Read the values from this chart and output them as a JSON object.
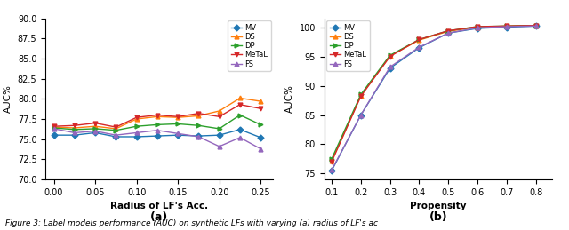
{
  "plot_a": {
    "xlabel": "Radius of LF's Acc.",
    "ylabel": "AUC%",
    "ylim": [
      70.0,
      90.0
    ],
    "xlim": [
      -0.01,
      0.265
    ],
    "yticks": [
      70.0,
      72.5,
      75.0,
      77.5,
      80.0,
      82.5,
      85.0,
      87.5,
      90.0
    ],
    "xticks": [
      0.0,
      0.05,
      0.1,
      0.15,
      0.2,
      0.25
    ],
    "series": {
      "MV": {
        "x": [
          0.0,
          0.025,
          0.05,
          0.075,
          0.1,
          0.125,
          0.15,
          0.175,
          0.2,
          0.225,
          0.25
        ],
        "y": [
          75.5,
          75.5,
          75.8,
          75.3,
          75.3,
          75.4,
          75.5,
          75.4,
          75.5,
          76.2,
          75.2
        ],
        "color": "#1f77b4",
        "marker": "D",
        "markersize": 3.5
      },
      "DS": {
        "x": [
          0.0,
          0.025,
          0.05,
          0.075,
          0.1,
          0.125,
          0.15,
          0.175,
          0.2,
          0.225,
          0.25
        ],
        "y": [
          76.5,
          76.4,
          76.6,
          76.3,
          77.5,
          77.8,
          77.7,
          77.9,
          78.5,
          80.1,
          79.7
        ],
        "color": "#ff7f0e",
        "marker": "^",
        "markersize": 3.5
      },
      "DP": {
        "x": [
          0.0,
          0.025,
          0.05,
          0.075,
          0.1,
          0.125,
          0.15,
          0.175,
          0.2,
          0.225,
          0.25
        ],
        "y": [
          76.4,
          76.2,
          76.3,
          76.1,
          76.6,
          76.8,
          76.9,
          76.7,
          76.3,
          78.0,
          76.8
        ],
        "color": "#2ca02c",
        "marker": ">",
        "markersize": 3.5
      },
      "MeTaL": {
        "x": [
          0.0,
          0.025,
          0.05,
          0.075,
          0.1,
          0.125,
          0.15,
          0.175,
          0.2,
          0.225,
          0.25
        ],
        "y": [
          76.6,
          76.7,
          77.0,
          76.5,
          77.7,
          78.0,
          77.8,
          78.2,
          77.8,
          79.3,
          78.8
        ],
        "color": "#d62728",
        "marker": "v",
        "markersize": 3.5
      },
      "FS": {
        "x": [
          0.0,
          0.025,
          0.05,
          0.075,
          0.1,
          0.125,
          0.15,
          0.175,
          0.2,
          0.225,
          0.25
        ],
        "y": [
          76.3,
          75.8,
          76.0,
          75.5,
          75.8,
          76.1,
          75.7,
          75.3,
          74.1,
          75.2,
          73.8
        ],
        "color": "#9467bd",
        "marker": "^",
        "markersize": 3.5
      }
    }
  },
  "plot_b": {
    "xlabel": "Propensity",
    "ylabel": "AUC%",
    "ylim": [
      74.0,
      101.5
    ],
    "xlim": [
      0.075,
      0.855
    ],
    "yticks": [
      75,
      80,
      85,
      90,
      95,
      100
    ],
    "xticks": [
      0.1,
      0.2,
      0.3,
      0.4,
      0.5,
      0.6,
      0.7,
      0.8
    ],
    "series": {
      "MV": {
        "x": [
          0.1,
          0.2,
          0.3,
          0.4,
          0.5,
          0.6,
          0.7,
          0.8
        ],
        "y": [
          75.5,
          85.0,
          93.0,
          96.5,
          99.0,
          99.8,
          100.0,
          100.2
        ],
        "color": "#1f77b4",
        "marker": "D",
        "markersize": 3.5
      },
      "DS": {
        "x": [
          0.1,
          0.2,
          0.3,
          0.4,
          0.5,
          0.6,
          0.7,
          0.8
        ],
        "y": [
          77.2,
          88.3,
          95.1,
          97.8,
          99.3,
          100.0,
          100.2,
          100.3
        ],
        "color": "#ff7f0e",
        "marker": "^",
        "markersize": 3.5
      },
      "DP": {
        "x": [
          0.1,
          0.2,
          0.3,
          0.4,
          0.5,
          0.6,
          0.7,
          0.8
        ],
        "y": [
          77.5,
          88.5,
          95.2,
          97.9,
          99.4,
          100.1,
          100.2,
          100.3
        ],
        "color": "#2ca02c",
        "marker": ">",
        "markersize": 3.5
      },
      "MeTaL": {
        "x": [
          0.1,
          0.2,
          0.3,
          0.4,
          0.5,
          0.6,
          0.7,
          0.8
        ],
        "y": [
          77.0,
          88.2,
          95.0,
          97.9,
          99.4,
          100.1,
          100.2,
          100.3
        ],
        "color": "#d62728",
        "marker": "v",
        "markersize": 3.5
      },
      "FS": {
        "x": [
          0.1,
          0.2,
          0.3,
          0.4,
          0.5,
          0.6,
          0.7,
          0.8
        ],
        "y": [
          75.6,
          85.0,
          93.2,
          96.6,
          99.0,
          99.9,
          100.1,
          100.2
        ],
        "color": "#9467bd",
        "marker": "^",
        "markersize": 3.5
      }
    }
  },
  "legend_order": [
    "MV",
    "DS",
    "DP",
    "MeTaL",
    "FS"
  ],
  "caption": "igure 3: Label models performance (AUC) on synthetic LFs with varying (a) radius of LF's ac",
  "bg_color": "#ffffff"
}
